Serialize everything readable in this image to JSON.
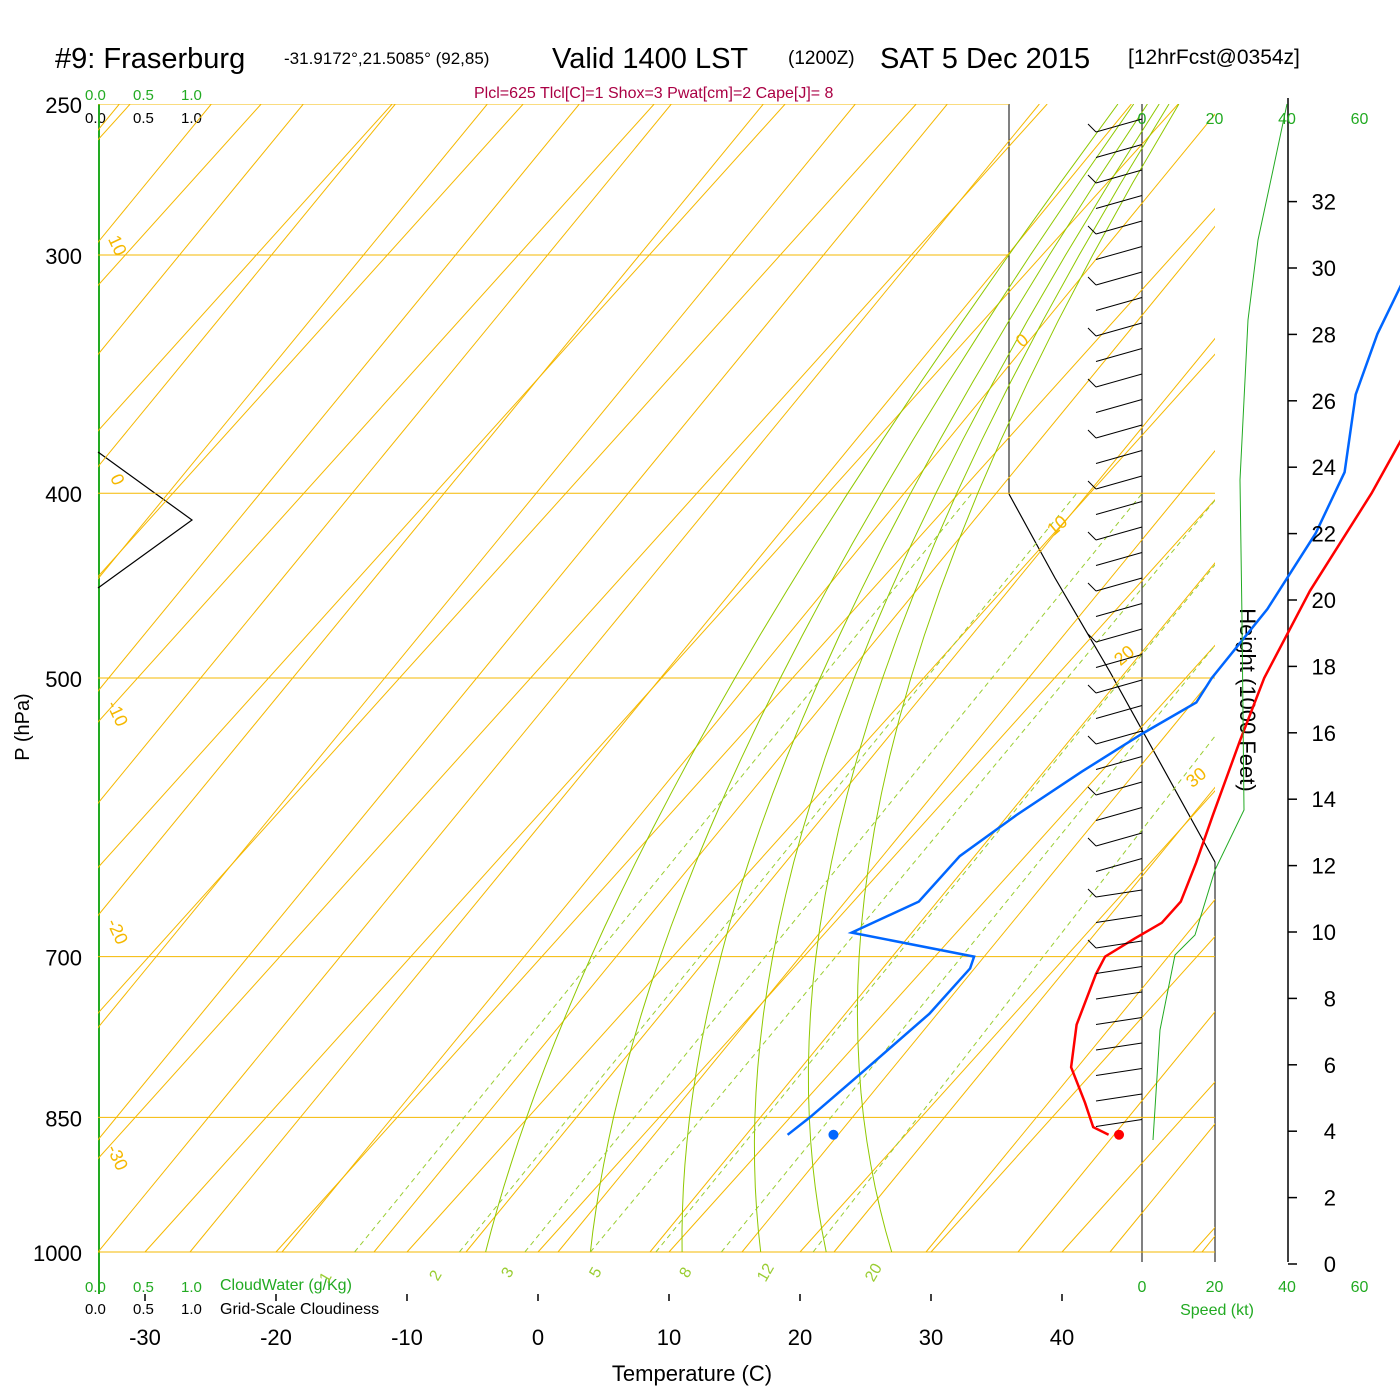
{
  "header": {
    "station": "#9: Fraserburg",
    "coords": "-31.9172°,21.5085° (92,85)",
    "valid": "Valid 1400 LST",
    "zulu": "(1200Z)",
    "date": "SAT 5 Dec 2015",
    "fcst": "[12hrFcst@0354z]",
    "indices": "Plcl=625 Tlcl[C]=1 Shox=3 Pwat[cm]=2 Cape[J]= 8"
  },
  "labels": {
    "xlabel": "Temperature (C)",
    "ylabel": "P (hPa)",
    "height_label": "Height (1000 Feet)",
    "cloudwater_label": "CloudWater (g/Kg)",
    "cloudiness_label": "Grid-Scale Cloudiness",
    "speed_label": "Speed (kt)",
    "scale_ticks": [
      "0.0",
      "0.5",
      "1.0"
    ]
  },
  "colors": {
    "temperature": "#ff0000",
    "dewpoint": "#0066ff",
    "grid": "#f5b800",
    "moist_adiabat": "#8fc800",
    "mixing_ratio": "#9acd32",
    "green_text": "#22aa22",
    "indices": "#aa0044"
  },
  "chart_data": {
    "type": "line",
    "title": "Skew-T log-P sounding",
    "xlabel": "Temperature (C)",
    "ylabel": "P (hPa)",
    "x_ticks": [
      -30,
      -20,
      -10,
      0,
      10,
      20,
      30,
      40
    ],
    "pressure_ticks": [
      250,
      300,
      400,
      500,
      700,
      850,
      1000
    ],
    "isotherm_labels": [
      "10",
      "0",
      "-10",
      "-20",
      "-30",
      "0",
      "10",
      "20",
      "30"
    ],
    "mixing_ratio_labels": [
      "1",
      "2",
      "3",
      "5",
      "8",
      "12",
      "20"
    ],
    "height_ticks_kft": [
      0,
      2,
      4,
      6,
      8,
      10,
      12,
      14,
      16,
      18,
      20,
      22,
      24,
      26,
      28,
      30,
      32
    ],
    "speed_ticks": [
      0,
      20,
      40,
      60
    ],
    "series": [
      {
        "name": "Temperature",
        "points": [
          [
            35.5,
            868
          ],
          [
            33.8,
            860
          ],
          [
            31.5,
            835
          ],
          [
            28.0,
            800
          ],
          [
            25.5,
            760
          ],
          [
            23.5,
            715
          ],
          [
            23.0,
            700
          ],
          [
            24.0,
            685
          ],
          [
            25.0,
            672
          ],
          [
            25.0,
            655
          ],
          [
            23.5,
            625
          ],
          [
            21.5,
            590
          ],
          [
            18.5,
            540
          ],
          [
            16.0,
            500
          ],
          [
            13.5,
            450
          ],
          [
            11.5,
            400
          ],
          [
            9.2,
            360
          ],
          [
            6.5,
            320
          ],
          [
            4.5,
            300
          ],
          [
            2.5,
            275
          ],
          [
            0.5,
            250
          ]
        ]
      },
      {
        "name": "Dewpoint",
        "points": [
          [
            11.0,
            868
          ],
          [
            11.5,
            850
          ],
          [
            12.5,
            800
          ],
          [
            13.5,
            750
          ],
          [
            13.5,
            710
          ],
          [
            13.0,
            700
          ],
          [
            2.0,
            680
          ],
          [
            5.0,
            655
          ],
          [
            5.0,
            620
          ],
          [
            6.5,
            590
          ],
          [
            8.5,
            560
          ],
          [
            10.5,
            535
          ],
          [
            12.5,
            515
          ],
          [
            12.0,
            500
          ],
          [
            11.5,
            460
          ],
          [
            10.0,
            420
          ],
          [
            8.0,
            390
          ],
          [
            3.5,
            355
          ],
          [
            1.0,
            330
          ],
          [
            -1.5,
            300
          ],
          [
            -3.5,
            280
          ],
          [
            -6.0,
            250
          ]
        ]
      }
    ],
    "surface_points": {
      "temperature": [
        36.3,
        868
      ],
      "dewpoint": [
        14.5,
        868
      ]
    }
  }
}
